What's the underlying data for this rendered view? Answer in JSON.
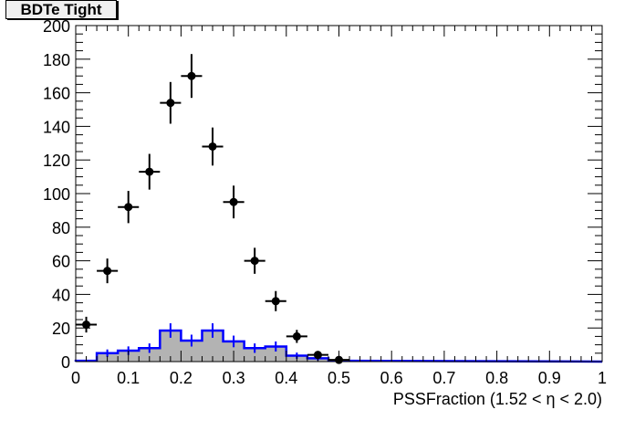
{
  "chart_data": {
    "type": "bar",
    "title": "BDTe Tight",
    "xlabel": "PSSFraction (1.52 <  η < 2.0)",
    "ylabel": "",
    "xlim": [
      0,
      1
    ],
    "ylim": [
      0,
      200
    ],
    "xticks": [
      "0",
      "0.1",
      "0.2",
      "0.3",
      "0.4",
      "0.5",
      "0.6",
      "0.7",
      "0.8",
      "0.9",
      "1"
    ],
    "yticks": [
      "0",
      "20",
      "40",
      "60",
      "80",
      "100",
      "120",
      "140",
      "160",
      "180",
      "200"
    ],
    "bin_width": 0.04,
    "series": [
      {
        "name": "data points",
        "style": "markers-with-errors",
        "color": "#000000",
        "x": [
          0.02,
          0.06,
          0.1,
          0.14,
          0.18,
          0.22,
          0.26,
          0.3,
          0.34,
          0.38,
          0.42,
          0.46,
          0.5
        ],
        "values": [
          22,
          54,
          92,
          113,
          154,
          170,
          128,
          95,
          60,
          36,
          15,
          4,
          1
        ]
      },
      {
        "name": "histogram",
        "style": "filled-step",
        "color": "#0000ff",
        "fill": "#b3b3b3",
        "x": [
          0.02,
          0.06,
          0.1,
          0.14,
          0.18,
          0.22,
          0.26,
          0.3,
          0.34,
          0.38,
          0.42,
          0.46,
          0.5
        ],
        "values": [
          0.5,
          5,
          6.5,
          8,
          18.5,
          12.5,
          18.5,
          12,
          8,
          9,
          3.5,
          2,
          0.5
        ]
      }
    ]
  }
}
